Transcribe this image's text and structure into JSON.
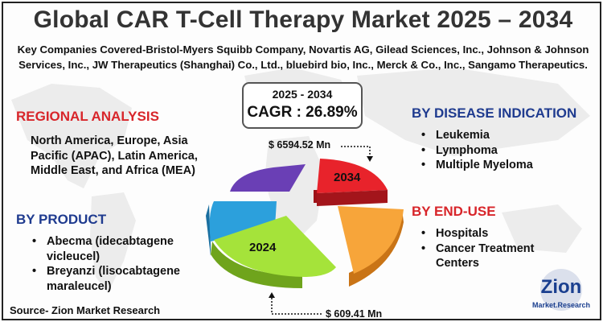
{
  "title": "Global CAR T-Cell Therapy Market 2025 – 2034",
  "subtitle": "Key Companies Covered-Bristol-Myers Squibb Company, Novartis AG, Gilead Sciences, Inc., Johnson & Johnson Services, Inc., JW Therapeutics (Shanghai) Co., Ltd., bluebird bio, Inc., Merck & Co., Inc., Sangamo Therapeutics.",
  "cagr": {
    "years": "2025 - 2034",
    "rate": "CAGR : 26.89%"
  },
  "regional": {
    "heading": "REGIONAL ANALYSIS",
    "text": "North America, Europe, Asia Pacific (APAC), Latin America, Middle East, and Africa (MEA)"
  },
  "product": {
    "heading": "BY PRODUCT",
    "items": [
      "Abecma (idecabtagene vicleucel)",
      "Breyanzi (lisocabtagene maraleucel)"
    ]
  },
  "disease": {
    "heading": "BY DISEASE INDICATION",
    "items": [
      "Leukemia",
      "Lymphoma",
      "Multiple Myeloma"
    ]
  },
  "enduse": {
    "heading": "BY END-USE",
    "items": [
      "Hospitals",
      "Cancer Treatment Centers"
    ]
  },
  "pie": {
    "label_2034": "2034",
    "label_2024": "2024",
    "value_2034": "$ 6594.52 Mn",
    "value_2024": "$ 609.41 Mn",
    "colors": {
      "red": "#e8232b",
      "orange": "#f7a53a",
      "green": "#a5e33a",
      "blue": "#2ca0dc",
      "purple": "#6a3fb5"
    }
  },
  "source": "Source- Zion Market Research",
  "logo": {
    "name": "Zion",
    "sub": "Market.Research"
  }
}
